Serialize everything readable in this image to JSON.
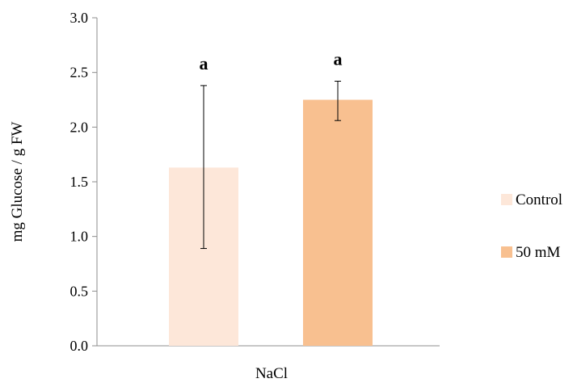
{
  "chart_data": {
    "type": "bar",
    "ylabel": "mg Glucose / g FW",
    "xlabel": "NaCl",
    "ylim": [
      0,
      3.0
    ],
    "yticks": [
      "0.0",
      "0.5",
      "1.0",
      "1.5",
      "2.0",
      "2.5",
      "3.0"
    ],
    "grid": false,
    "legend_position": "right",
    "series": [
      {
        "name": "Control",
        "value": 1.63,
        "error_low": 0.89,
        "error_high": 2.38,
        "label": "a",
        "color": "#fde7d9"
      },
      {
        "name": "50 mM",
        "value": 2.25,
        "error_low": 2.06,
        "error_high": 2.42,
        "label": "a",
        "color": "#f8c090"
      }
    ]
  }
}
